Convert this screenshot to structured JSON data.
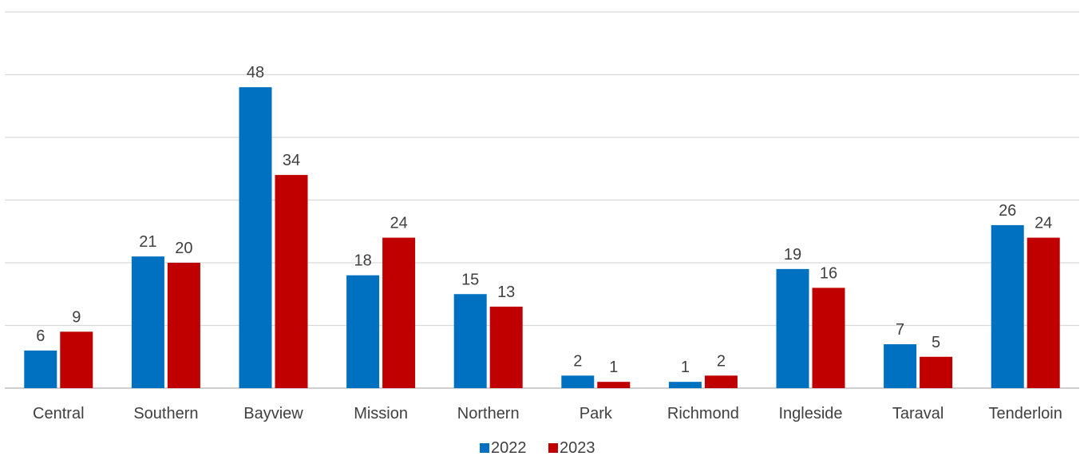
{
  "chart_data": {
    "type": "bar",
    "categories": [
      "Central",
      "Southern",
      "Bayview",
      "Mission",
      "Northern",
      "Park",
      "Richmond",
      "Ingleside",
      "Taraval",
      "Tenderloin"
    ],
    "series": [
      {
        "name": "2022",
        "color": "#0070c0",
        "values": [
          6,
          21,
          48,
          18,
          15,
          2,
          1,
          19,
          7,
          26
        ]
      },
      {
        "name": "2023",
        "color": "#c00000",
        "values": [
          9,
          20,
          34,
          24,
          13,
          1,
          2,
          16,
          5,
          24
        ]
      }
    ],
    "ylim": [
      0,
      60
    ],
    "y_gridline_step": 10,
    "grid": true,
    "data_labels": true,
    "legend_position": "bottom"
  }
}
